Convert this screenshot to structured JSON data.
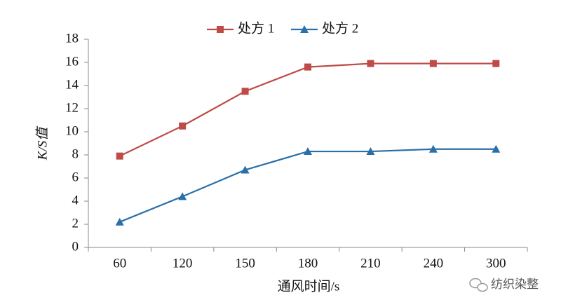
{
  "chart_data": {
    "type": "line",
    "x_label": "通风时间/s",
    "y_label": "K/S值",
    "categories": [
      "60",
      "120",
      "150",
      "180",
      "210",
      "240",
      "300"
    ],
    "series": [
      {
        "name": "处方 1",
        "color": "#be4b48",
        "marker": "square",
        "values": [
          7.9,
          10.5,
          13.5,
          15.6,
          15.9,
          15.9,
          15.9
        ]
      },
      {
        "name": "处方 2",
        "color": "#2a6fa8",
        "marker": "triangle",
        "values": [
          2.2,
          4.4,
          6.7,
          8.3,
          8.3,
          8.5,
          8.5
        ]
      }
    ],
    "ylim": [
      0,
      18
    ],
    "yticks": [
      0,
      2,
      4,
      6,
      8,
      10,
      12,
      14,
      16,
      18
    ],
    "grid": false,
    "legend": "top"
  },
  "watermark": "纺织染整"
}
